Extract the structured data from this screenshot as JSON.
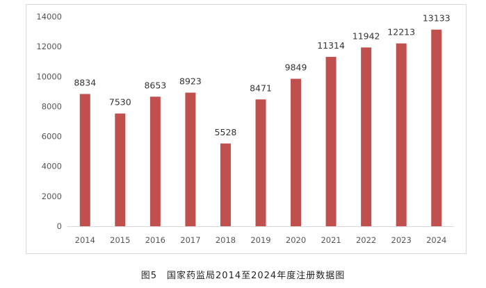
{
  "chart_data": {
    "type": "bar",
    "categories": [
      "2014",
      "2015",
      "2016",
      "2017",
      "2018",
      "2019",
      "2020",
      "2021",
      "2022",
      "2023",
      "2024"
    ],
    "values": [
      8834,
      7530,
      8653,
      8923,
      5528,
      8471,
      9849,
      11314,
      11942,
      12213,
      13133
    ],
    "ylim": [
      0,
      14000
    ],
    "yticks": [
      0,
      2000,
      4000,
      6000,
      8000,
      10000,
      12000,
      14000
    ],
    "bar_color": "#c0504d",
    "grid": false,
    "legend": "none"
  },
  "caption": "图5　国家药监局2014至2024年度注册数据图"
}
